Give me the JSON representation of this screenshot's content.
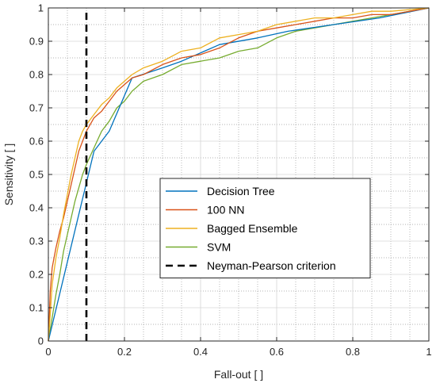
{
  "chart_data": {
    "type": "line",
    "title": "",
    "xlabel": "Fall-out [ ]",
    "ylabel": "Sensitivity [ ]",
    "xlim": [
      0,
      1
    ],
    "ylim": [
      0,
      1
    ],
    "xticks": [
      "0",
      "0.2",
      "0.4",
      "0.6",
      "0.8",
      "1"
    ],
    "yticks": [
      "0",
      "0.1",
      "0.2",
      "0.3",
      "0.4",
      "0.5",
      "0.6",
      "0.7",
      "0.8",
      "0.9",
      "1"
    ],
    "grid": true,
    "minor_grid": true,
    "legend_position": "lower-right",
    "series": [
      {
        "name": "Decision Tree",
        "color": "#0072BD",
        "style": "solid",
        "points": [
          [
            0,
            0
          ],
          [
            0.12,
            0.57
          ],
          [
            0.16,
            0.63
          ],
          [
            0.22,
            0.79
          ],
          [
            0.3,
            0.82
          ],
          [
            0.35,
            0.84
          ],
          [
            0.45,
            0.89
          ],
          [
            0.55,
            0.91
          ],
          [
            0.63,
            0.93
          ],
          [
            0.75,
            0.95
          ],
          [
            0.87,
            0.97
          ],
          [
            1,
            1
          ]
        ]
      },
      {
        "name": "100 NN",
        "color": "#D95319",
        "style": "solid",
        "points": [
          [
            0,
            0
          ],
          [
            0.005,
            0.15
          ],
          [
            0.01,
            0.22
          ],
          [
            0.02,
            0.28
          ],
          [
            0.03,
            0.33
          ],
          [
            0.04,
            0.37
          ],
          [
            0.05,
            0.42
          ],
          [
            0.06,
            0.47
          ],
          [
            0.07,
            0.52
          ],
          [
            0.08,
            0.57
          ],
          [
            0.09,
            0.6
          ],
          [
            0.1,
            0.63
          ],
          [
            0.12,
            0.67
          ],
          [
            0.14,
            0.69
          ],
          [
            0.16,
            0.72
          ],
          [
            0.18,
            0.75
          ],
          [
            0.2,
            0.77
          ],
          [
            0.22,
            0.79
          ],
          [
            0.25,
            0.8
          ],
          [
            0.3,
            0.83
          ],
          [
            0.35,
            0.85
          ],
          [
            0.4,
            0.86
          ],
          [
            0.45,
            0.88
          ],
          [
            0.5,
            0.91
          ],
          [
            0.55,
            0.93
          ],
          [
            0.6,
            0.94
          ],
          [
            0.65,
            0.95
          ],
          [
            0.7,
            0.96
          ],
          [
            0.75,
            0.97
          ],
          [
            0.8,
            0.97
          ],
          [
            0.85,
            0.98
          ],
          [
            0.9,
            0.98
          ],
          [
            0.95,
            0.99
          ],
          [
            1,
            1
          ]
        ]
      },
      {
        "name": "Bagged Ensemble",
        "color": "#EDB120",
        "style": "solid",
        "points": [
          [
            0,
            0
          ],
          [
            0.005,
            0.08
          ],
          [
            0.01,
            0.17
          ],
          [
            0.02,
            0.25
          ],
          [
            0.03,
            0.31
          ],
          [
            0.04,
            0.38
          ],
          [
            0.05,
            0.44
          ],
          [
            0.06,
            0.5
          ],
          [
            0.07,
            0.55
          ],
          [
            0.08,
            0.6
          ],
          [
            0.09,
            0.63
          ],
          [
            0.1,
            0.65
          ],
          [
            0.12,
            0.68
          ],
          [
            0.14,
            0.71
          ],
          [
            0.16,
            0.73
          ],
          [
            0.18,
            0.76
          ],
          [
            0.2,
            0.78
          ],
          [
            0.22,
            0.8
          ],
          [
            0.25,
            0.82
          ],
          [
            0.3,
            0.84
          ],
          [
            0.35,
            0.87
          ],
          [
            0.4,
            0.88
          ],
          [
            0.45,
            0.91
          ],
          [
            0.5,
            0.92
          ],
          [
            0.55,
            0.93
          ],
          [
            0.6,
            0.95
          ],
          [
            0.65,
            0.96
          ],
          [
            0.7,
            0.97
          ],
          [
            0.75,
            0.97
          ],
          [
            0.8,
            0.98
          ],
          [
            0.85,
            0.99
          ],
          [
            0.9,
            0.99
          ],
          [
            0.95,
            0.995
          ],
          [
            1,
            1
          ]
        ]
      },
      {
        "name": "SVM",
        "color": "#77AC30",
        "style": "solid",
        "points": [
          [
            0,
            0
          ],
          [
            0.01,
            0.07
          ],
          [
            0.02,
            0.14
          ],
          [
            0.03,
            0.2
          ],
          [
            0.04,
            0.27
          ],
          [
            0.05,
            0.32
          ],
          [
            0.06,
            0.37
          ],
          [
            0.07,
            0.42
          ],
          [
            0.08,
            0.46
          ],
          [
            0.09,
            0.5
          ],
          [
            0.1,
            0.53
          ],
          [
            0.12,
            0.58
          ],
          [
            0.14,
            0.63
          ],
          [
            0.16,
            0.66
          ],
          [
            0.18,
            0.7
          ],
          [
            0.2,
            0.72
          ],
          [
            0.22,
            0.75
          ],
          [
            0.25,
            0.78
          ],
          [
            0.3,
            0.8
          ],
          [
            0.35,
            0.83
          ],
          [
            0.4,
            0.84
          ],
          [
            0.45,
            0.85
          ],
          [
            0.5,
            0.87
          ],
          [
            0.55,
            0.88
          ],
          [
            0.6,
            0.91
          ],
          [
            0.65,
            0.93
          ],
          [
            0.7,
            0.94
          ],
          [
            0.75,
            0.95
          ],
          [
            0.8,
            0.96
          ],
          [
            0.85,
            0.97
          ],
          [
            0.9,
            0.98
          ],
          [
            0.95,
            0.99
          ],
          [
            1,
            1
          ]
        ]
      },
      {
        "name": "Neyman-Pearson criterion",
        "color": "#000000",
        "style": "dashed",
        "points": [
          [
            0.1,
            0
          ],
          [
            0.1,
            1
          ]
        ]
      }
    ]
  }
}
